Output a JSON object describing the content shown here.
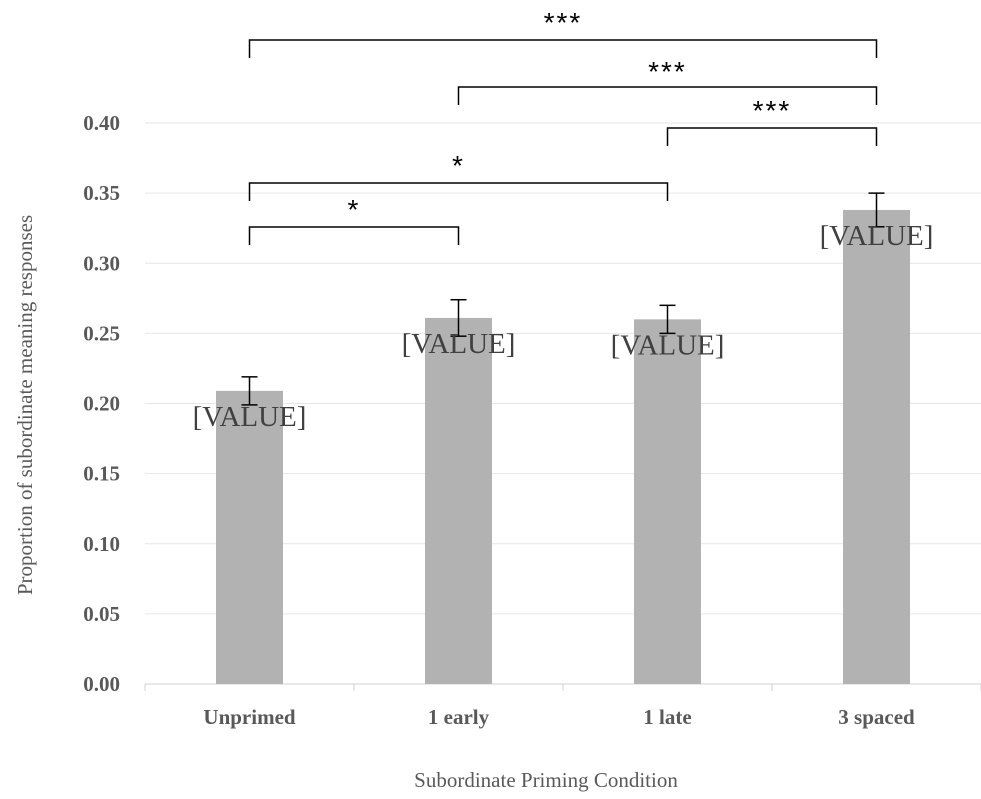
{
  "chart_data": {
    "type": "bar",
    "title": "",
    "xlabel": "Subordinate Priming Condition",
    "ylabel": "Proportion of subordinate meaning responses",
    "categories": [
      "Unprimed",
      "1 early",
      "1 late",
      "3 spaced"
    ],
    "values": [
      0.209,
      0.261,
      0.26,
      0.338
    ],
    "error_bars": [
      0.01,
      0.013,
      0.01,
      0.012
    ],
    "data_labels": [
      "[VALUE]",
      "[VALUE]",
      "[VALUE]",
      "[VALUE]"
    ],
    "ylim": [
      0,
      0.4
    ],
    "yticks": [
      "0.00",
      "0.05",
      "0.10",
      "0.15",
      "0.20",
      "0.25",
      "0.30",
      "0.35",
      "0.40"
    ],
    "grid": true,
    "bar_color": "#b2b2b2",
    "significance": [
      {
        "from": "Unprimed",
        "to": "1 early",
        "label": "*"
      },
      {
        "from": "Unprimed",
        "to": "1 late",
        "label": "*"
      },
      {
        "from": "1 late",
        "to": "3 spaced",
        "label": "***"
      },
      {
        "from": "1 early",
        "to": "3 spaced",
        "label": "***"
      },
      {
        "from": "Unprimed",
        "to": "3 spaced",
        "label": "***"
      }
    ]
  }
}
